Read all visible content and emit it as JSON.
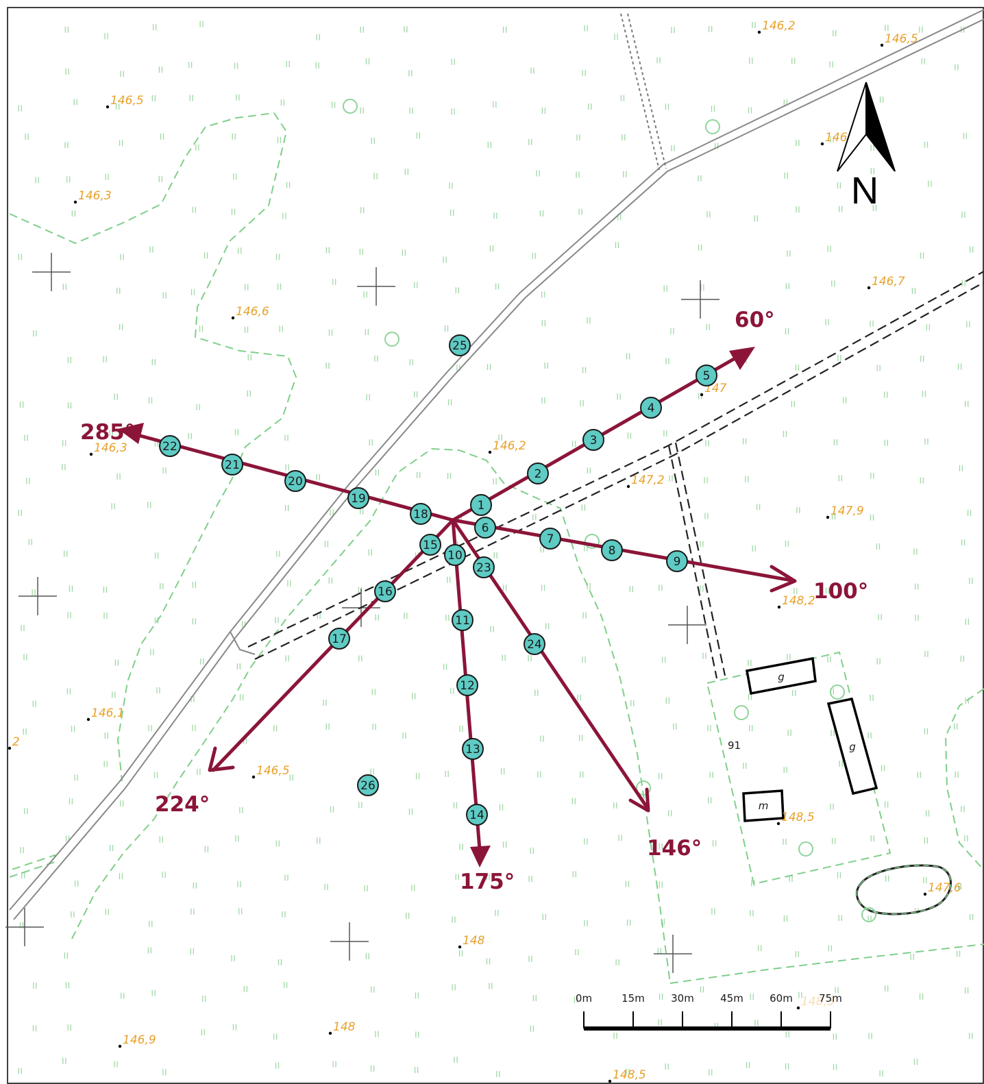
{
  "map": {
    "north_label": "N",
    "house_number": "91",
    "colors": {
      "profile": "#8b1538",
      "station_fill": "#5ecbc4",
      "elevation_text": "#e8a12a",
      "boundary": "#7fcf8a",
      "road": "#888888"
    },
    "elevations": [
      {
        "label": "146,2"
      },
      {
        "label": "146,5"
      },
      {
        "label": "146,5"
      },
      {
        "label": "146,1"
      },
      {
        "label": "146,3"
      },
      {
        "label": "146,7"
      },
      {
        "label": "146,6"
      },
      {
        "label": "147"
      },
      {
        "label": "146,3"
      },
      {
        "label": "146,2"
      },
      {
        "label": "147,2"
      },
      {
        "label": "147,9"
      },
      {
        "label": "148,2"
      },
      {
        "label": "146,1"
      },
      {
        "label": "146,5"
      },
      {
        "label": "148,5"
      },
      {
        "label": "147,6"
      },
      {
        "label": "148"
      },
      {
        "label": "148"
      },
      {
        "label": "146,9"
      },
      {
        "label": "148,5"
      },
      {
        "label": "2"
      },
      {
        "label": "148,3"
      }
    ],
    "profiles": [
      {
        "bearing": "60°"
      },
      {
        "bearing": "100°"
      },
      {
        "bearing": "175°"
      },
      {
        "bearing": "146°"
      },
      {
        "bearing": "224°"
      },
      {
        "bearing": "285°"
      }
    ],
    "stations": [
      "1",
      "2",
      "3",
      "4",
      "5",
      "6",
      "7",
      "8",
      "9",
      "10",
      "11",
      "12",
      "13",
      "14",
      "15",
      "16",
      "17",
      "18",
      "19",
      "20",
      "21",
      "22",
      "23",
      "24",
      "25",
      "26"
    ],
    "buildings": [
      {
        "label": "g"
      },
      {
        "label": "g"
      },
      {
        "label": "m"
      }
    ],
    "scale_bar": {
      "labels": [
        "0m",
        "15m",
        "30m",
        "45m",
        "60m",
        "75m"
      ]
    }
  }
}
